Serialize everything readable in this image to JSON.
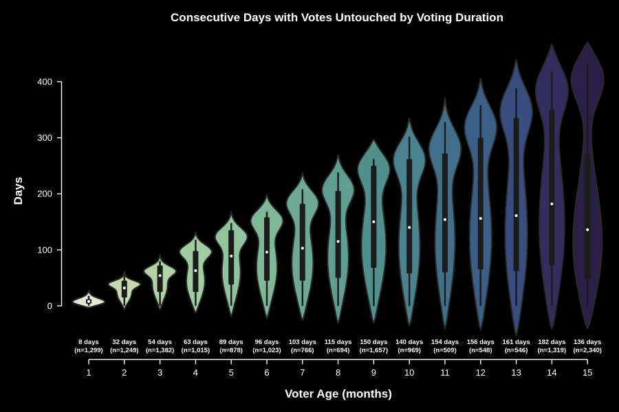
{
  "chart_data": {
    "type": "violin",
    "title": "Consecutive Days with Votes Untouched by Voting Duration",
    "xlabel": "Voter Age (months)",
    "ylabel": "Days",
    "ylim": [
      -20,
      400
    ],
    "yticks": [
      0,
      100,
      200,
      300,
      400
    ],
    "categories": [
      "1",
      "2",
      "3",
      "4",
      "5",
      "6",
      "7",
      "8",
      "9",
      "10",
      "11",
      "12",
      "13",
      "14",
      "15"
    ],
    "annotations": [
      {
        "days": "8 days",
        "n": "(n=1,299)"
      },
      {
        "days": "32 days",
        "n": "(n=1,249)"
      },
      {
        "days": "54 days",
        "n": "(n=1,382)"
      },
      {
        "days": "63 days",
        "n": "(n=1,015)"
      },
      {
        "days": "89 days",
        "n": "(n=878)"
      },
      {
        "days": "96 days",
        "n": "(n=1,023)"
      },
      {
        "days": "103 days",
        "n": "(n=766)"
      },
      {
        "days": "115 days",
        "n": "(n=694)"
      },
      {
        "days": "150 days",
        "n": "(n=1,657)"
      },
      {
        "days": "140 days",
        "n": "(n=969)"
      },
      {
        "days": "154 days",
        "n": "(n=509)"
      },
      {
        "days": "156 days",
        "n": "(n=548)"
      },
      {
        "days": "161 days",
        "n": "(n=546)"
      },
      {
        "days": "182 days",
        "n": "(n=1,319)"
      },
      {
        "days": "136 days",
        "n": "(n=2,340)"
      }
    ],
    "series": [
      {
        "median": 8,
        "q1": 4,
        "q3": 12,
        "whisker_low": 0,
        "whisker_high": 18,
        "kde_low": -3,
        "kde_high": 28,
        "peak": 6,
        "color": "#e4e9d4"
      },
      {
        "median": 32,
        "q1": 15,
        "q3": 45,
        "whisker_low": 0,
        "whisker_high": 55,
        "kde_low": -6,
        "kde_high": 62,
        "peak": 40,
        "color": "#c4dbb0"
      },
      {
        "median": 54,
        "q1": 25,
        "q3": 72,
        "whisker_low": 0,
        "whisker_high": 80,
        "kde_low": -7,
        "kde_high": 92,
        "peak": 64,
        "color": "#b1d3a6"
      },
      {
        "median": 63,
        "q1": 25,
        "q3": 98,
        "whisker_low": 0,
        "whisker_high": 118,
        "kde_low": -12,
        "kde_high": 132,
        "peak": 100,
        "color": "#a0cca0"
      },
      {
        "median": 89,
        "q1": 38,
        "q3": 135,
        "whisker_low": 0,
        "whisker_high": 148,
        "kde_low": -18,
        "kde_high": 167,
        "peak": 128,
        "color": "#90c49c"
      },
      {
        "median": 96,
        "q1": 45,
        "q3": 158,
        "whisker_low": 0,
        "whisker_high": 168,
        "kde_low": -22,
        "kde_high": 198,
        "peak": 158,
        "color": "#7fb897"
      },
      {
        "median": 103,
        "q1": 45,
        "q3": 182,
        "whisker_low": 0,
        "whisker_high": 208,
        "kde_low": -25,
        "kde_high": 236,
        "peak": 190,
        "color": "#6eaa93"
      },
      {
        "median": 115,
        "q1": 50,
        "q3": 205,
        "whisker_low": 0,
        "whisker_high": 238,
        "kde_low": -30,
        "kde_high": 270,
        "peak": 215,
        "color": "#5f9e91"
      },
      {
        "median": 150,
        "q1": 68,
        "q3": 250,
        "whisker_low": 0,
        "whisker_high": 262,
        "kde_low": -30,
        "kde_high": 297,
        "peak": 255,
        "color": "#52908e"
      },
      {
        "median": 140,
        "q1": 58,
        "q3": 262,
        "whisker_low": 0,
        "whisker_high": 302,
        "kde_low": -35,
        "kde_high": 335,
        "peak": 270,
        "color": "#4a838d"
      },
      {
        "median": 154,
        "q1": 60,
        "q3": 272,
        "whisker_low": 0,
        "whisker_high": 328,
        "kde_low": -40,
        "kde_high": 372,
        "peak": 290,
        "color": "#42708a"
      },
      {
        "median": 156,
        "q1": 65,
        "q3": 300,
        "whisker_low": 0,
        "whisker_high": 358,
        "kde_low": -42,
        "kde_high": 406,
        "peak": 330,
        "color": "#3c5f85"
      },
      {
        "median": 161,
        "q1": 62,
        "q3": 335,
        "whisker_low": 0,
        "whisker_high": 388,
        "kde_low": -52,
        "kde_high": 440,
        "peak": 360,
        "color": "#394e7e"
      },
      {
        "median": 182,
        "q1": 72,
        "q3": 350,
        "whisker_low": 0,
        "whisker_high": 418,
        "kde_low": -40,
        "kde_high": 466,
        "peak": 400,
        "color": "#332e5e"
      },
      {
        "median": 136,
        "q1": 48,
        "q3": 272,
        "whisker_low": 0,
        "whisker_high": 432,
        "kde_low": -40,
        "kde_high": 470,
        "peak": 420,
        "color": "#2c1f45"
      }
    ]
  }
}
